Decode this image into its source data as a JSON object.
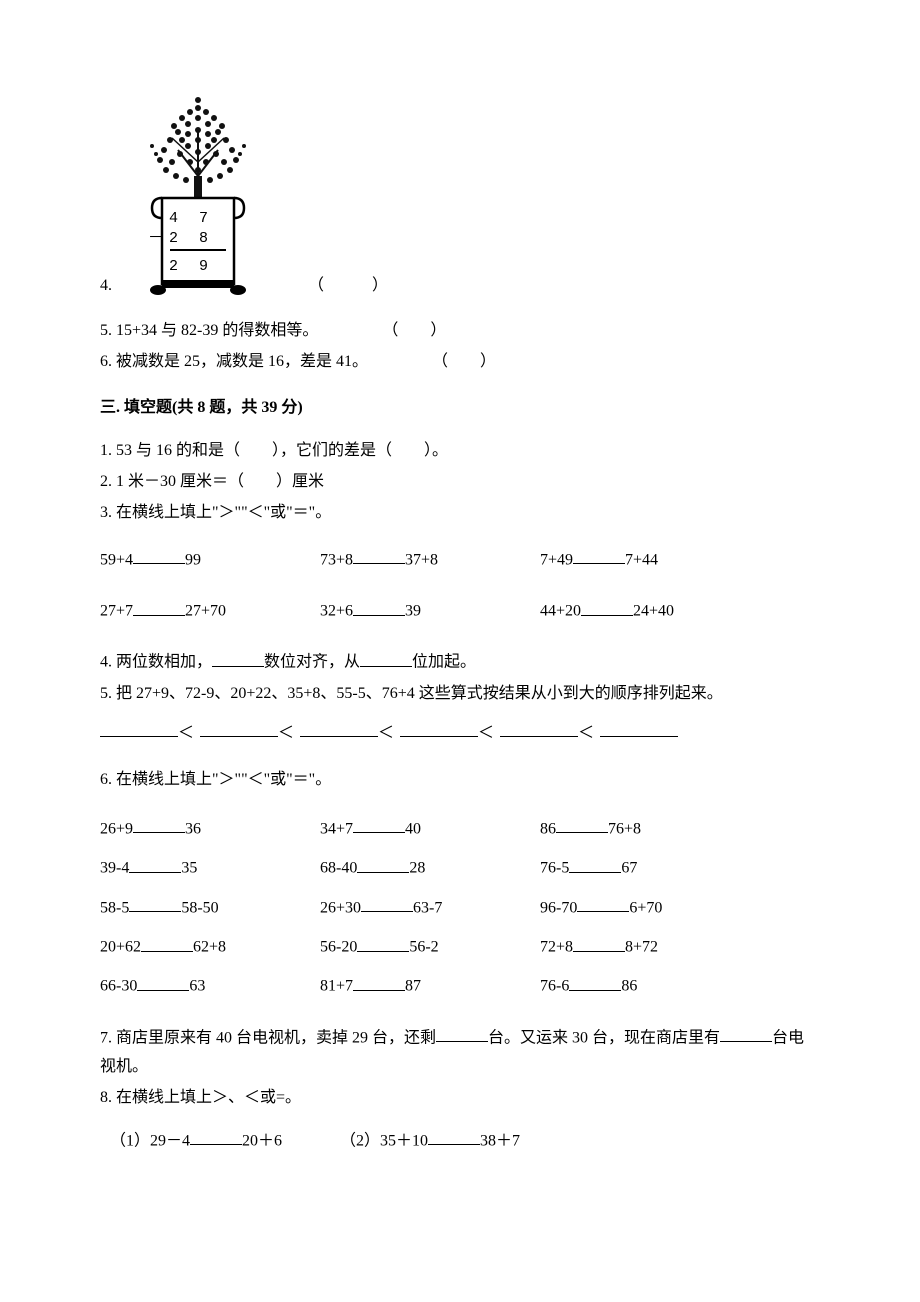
{
  "q4": {
    "num": "4.",
    "calc": {
      "top": "4 7",
      "minus": "－2 8",
      "ans": "2 9"
    },
    "paren": "（　　　）"
  },
  "q5": {
    "text": "5. 15+34 与 82-39 的得数相等。",
    "paren": "（　　）"
  },
  "q6": {
    "text": "6. 被减数是 25，减数是 16，差是 41。",
    "paren": "（　　）"
  },
  "sec3_title": "三. 填空题(共 8 题，共 39 分)",
  "s3": {
    "q1": "1. 53 与 16 的和是（　　），它们的差是（　　）。",
    "q2": "2. 1 米－30 厘米＝（　　）厘米",
    "q3": {
      "stem": "3. 在横线上填上\"＞\"\"＜\"或\"＝\"。",
      "r1": {
        "a1": "59+4",
        "a2": "99",
        "b1": "73+8",
        "b2": "37+8",
        "c1": "7+49",
        "c2": "7+44"
      },
      "r2": {
        "a1": "27+7",
        "a2": "27+70",
        "b1": "32+6",
        "b2": "39",
        "c1": "44+20",
        "c2": "24+40"
      }
    },
    "q4": {
      "pre": "4. 两位数相加，",
      "mid": "数位对齐，从",
      "suf": "位加起。"
    },
    "q5": {
      "stem": "5. 把 27+9、72-9、20+22、35+8、55-5、76+4 这些算式按结果从小到大的顺序排列起来。",
      "lt": "＜"
    },
    "q6": {
      "stem": "6. 在横线上填上\"＞\"\"＜\"或\"＝\"。",
      "rows": [
        {
          "a1": "26+9",
          "a2": "36",
          "b1": "34+7",
          "b2": "40",
          "c1": "86",
          "c2": "76+8"
        },
        {
          "a1": "39-4",
          "a2": "35",
          "b1": "68-40",
          "b2": "28",
          "c1": "76-5",
          "c2": "67"
        },
        {
          "a1": "58-5",
          "a2": "58-50",
          "b1": "26+30",
          "b2": "63-7",
          "c1": "96-70",
          "c2": "6+70"
        },
        {
          "a1": "20+62",
          "a2": "62+8",
          "b1": "56-20",
          "b2": "56-2",
          "c1": "72+8",
          "c2": "8+72"
        },
        {
          "a1": "66-30",
          "a2": "63",
          "b1": "81+7",
          "b2": "87",
          "c1": "76-6",
          "c2": "86"
        }
      ]
    },
    "q7": {
      "p1": "7. 商店里原来有 40 台电视机，卖掉 29 台，还剩",
      "p2": "台。又运来 30 台，现在商店里有",
      "p3": "台电视机。"
    },
    "q8": {
      "stem": "8. 在横线上填上＞、＜或=。",
      "a_pre": "（1）29－4",
      "a_suf": "20＋6",
      "b_pre": "（2）35＋10",
      "b_suf": "38＋7"
    }
  }
}
